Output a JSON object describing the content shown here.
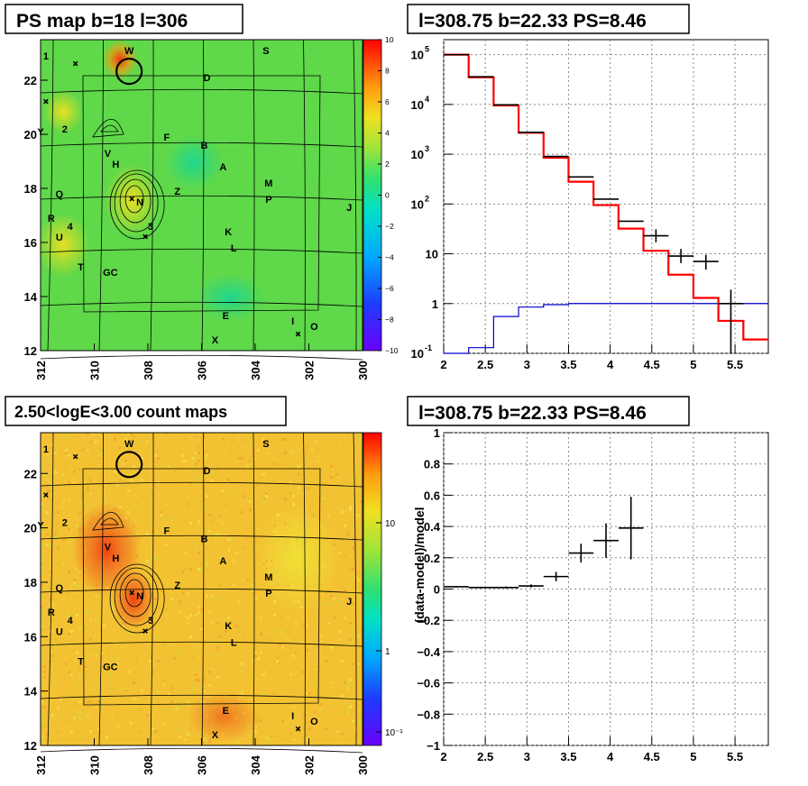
{
  "colors": {
    "map_bg_ps": "#5fd84a",
    "map_bg_counts": "#f2c232",
    "model_line": "#ff0000",
    "bg_line": "#0000cc",
    "data": "#000000"
  },
  "panels": {
    "ps_map": {
      "title": "PS map b=18 l=306",
      "x_ticks": [
        "312",
        "310",
        "308",
        "306",
        "304",
        "302",
        "300"
      ],
      "y_ticks": [
        "22",
        "20",
        "18",
        "16",
        "14",
        "12"
      ],
      "colorbar_ticks": [
        "10",
        "8",
        "6",
        "4",
        "2",
        "0",
        "−2",
        "−4",
        "−6",
        "−8",
        "−10"
      ]
    },
    "count_map": {
      "title": "2.50<logE<3.00 count maps",
      "x_ticks": [
        "312",
        "310",
        "308",
        "306",
        "304",
        "302",
        "300"
      ],
      "y_ticks": [
        "22",
        "20",
        "18",
        "16",
        "14",
        "12"
      ],
      "colorbar_ticks": [
        "10",
        "1",
        "10⁻¹"
      ]
    },
    "spectrum": {
      "title": "l=308.75 b=22.33 PS=8.46",
      "x_ticks": [
        "2",
        "2.5",
        "3",
        "3.5",
        "4",
        "4.5",
        "5",
        "5.5"
      ],
      "y_tick_mantissa": "10",
      "y_tick_exponents": [
        "5",
        "4",
        "3",
        "2",
        "",
        "",
        "-1"
      ],
      "y_tick_plain": [
        "",
        "",
        "",
        "",
        "10",
        "1",
        ""
      ]
    },
    "residual": {
      "title": "l=308.75 b=22.33 PS=8.46",
      "ylabel": "(data-model)/model",
      "x_ticks": [
        "2",
        "2.5",
        "3",
        "3.5",
        "4",
        "4.5",
        "5",
        "5.5"
      ],
      "y_ticks": [
        "1",
        "0.8",
        "0.6",
        "0.4",
        "0.2",
        "0",
        "−0.2",
        "−0.4",
        "−0.6",
        "−0.8",
        "−1"
      ]
    }
  },
  "source_labels": [
    {
      "label": "W",
      "l": 308.7,
      "b": 23.1
    },
    {
      "label": "S",
      "l": 303.6,
      "b": 23.1
    },
    {
      "label": "1",
      "l": 311.8,
      "b": 22.9
    },
    {
      "label": "D",
      "l": 305.8,
      "b": 22.1
    },
    {
      "label": "Y",
      "l": 312.0,
      "b": 20.1
    },
    {
      "label": "2",
      "l": 311.1,
      "b": 20.2
    },
    {
      "label": "F",
      "l": 307.3,
      "b": 19.9
    },
    {
      "label": "B",
      "l": 305.9,
      "b": 19.6
    },
    {
      "label": "V",
      "l": 309.5,
      "b": 19.3
    },
    {
      "label": "H",
      "l": 309.2,
      "b": 18.9
    },
    {
      "label": "A",
      "l": 305.2,
      "b": 18.8
    },
    {
      "label": "M",
      "l": 303.5,
      "b": 18.2
    },
    {
      "label": "Q",
      "l": 311.3,
      "b": 17.8
    },
    {
      "label": "Z",
      "l": 306.9,
      "b": 17.9
    },
    {
      "label": "N",
      "l": 308.3,
      "b": 17.5
    },
    {
      "label": "P",
      "l": 303.5,
      "b": 17.6
    },
    {
      "label": "J",
      "l": 300.5,
      "b": 17.3
    },
    {
      "label": "R",
      "l": 311.6,
      "b": 16.9
    },
    {
      "label": "4",
      "l": 310.9,
      "b": 16.6
    },
    {
      "label": "3",
      "l": 307.9,
      "b": 16.6
    },
    {
      "label": "K",
      "l": 305.0,
      "b": 16.4
    },
    {
      "label": "U",
      "l": 311.3,
      "b": 16.2
    },
    {
      "label": "L",
      "l": 304.8,
      "b": 15.8
    },
    {
      "label": "T",
      "l": 310.5,
      "b": 15.1
    },
    {
      "label": "GC",
      "l": 309.4,
      "b": 14.9
    },
    {
      "label": "E",
      "l": 305.1,
      "b": 13.3
    },
    {
      "label": "I",
      "l": 302.6,
      "b": 13.1
    },
    {
      "label": "O",
      "l": 301.8,
      "b": 12.9
    },
    {
      "label": "X",
      "l": 305.5,
      "b": 12.4
    }
  ],
  "chart_data": [
    {
      "type": "heatmap",
      "title": "PS map b=18 l=306",
      "xlabel": "",
      "ylabel": "",
      "xlim": [
        312,
        300
      ],
      "ylim": [
        12,
        23.5
      ],
      "colorbar": {
        "min": -10,
        "max": 10
      },
      "dominant_value": 1,
      "hotspots": [
        {
          "l": 309.0,
          "b": 23.0,
          "value": 9
        },
        {
          "l": 308.4,
          "b": 17.6,
          "value": 5
        },
        {
          "l": 311.5,
          "b": 16.2,
          "value": 4
        },
        {
          "l": 311.4,
          "b": 21.2,
          "value": 3
        }
      ]
    },
    {
      "type": "line",
      "title": "l=308.75 b=22.33 PS=8.46",
      "xlabel": "",
      "ylabel": "",
      "xlim": [
        2,
        5.9
      ],
      "ylim": [
        0.1,
        200000
      ],
      "yscale": "log",
      "grid": true,
      "bin_edges": [
        2.0,
        2.3,
        2.6,
        2.9,
        3.2,
        3.5,
        3.8,
        4.1,
        4.4,
        4.7,
        5.0,
        5.3,
        5.6,
        5.9
      ],
      "series": [
        {
          "values": [
            100000,
            35000,
            9500,
            2700,
            850,
            280,
            95,
            32,
            11.5,
            3.8,
            1.3,
            0.45,
            0.19
          ]
        },
        {
          "values": [
            0.1,
            0.13,
            0.55,
            0.85,
            0.95,
            1.0,
            1.0,
            1.0,
            1.0,
            1.0,
            1.0,
            1.0,
            1.0
          ]
        }
      ],
      "data_points": [
        {
          "x": 2.15,
          "y": 100000
        },
        {
          "x": 2.45,
          "y": 36000
        },
        {
          "x": 2.75,
          "y": 9800
        },
        {
          "x": 3.05,
          "y": 2750
        },
        {
          "x": 3.35,
          "y": 900
        },
        {
          "x": 3.65,
          "y": 350
        },
        {
          "x": 3.95,
          "y": 125
        },
        {
          "x": 4.25,
          "y": 45
        },
        {
          "x": 4.55,
          "y": 23,
          "err": [
            17,
            31
          ]
        },
        {
          "x": 4.85,
          "y": 9,
          "err": [
            6.5,
            12.5
          ]
        },
        {
          "x": 5.15,
          "y": 7,
          "err": [
            4.8,
            9.5
          ]
        },
        {
          "x": 5.45,
          "y": 1,
          "err": [
            0.1,
            1.9
          ]
        }
      ]
    },
    {
      "type": "heatmap",
      "title": "2.50<logE<3.00 count maps",
      "xlabel": "",
      "ylabel": "",
      "xlim": [
        312,
        300
      ],
      "ylim": [
        12,
        23.5
      ],
      "colorbar": {
        "min": 0.07,
        "max": 50,
        "scale": "log"
      },
      "dominant_value": 3,
      "hotspots": [
        {
          "l": 309.6,
          "b": 19.5,
          "value": 12
        },
        {
          "l": 308.4,
          "b": 17.6,
          "value": 10
        },
        {
          "l": 305.3,
          "b": 13.2,
          "value": 6
        }
      ]
    },
    {
      "type": "scatter",
      "title": "l=308.75 b=22.33 PS=8.46",
      "xlabel": "",
      "ylabel": "(data-model)/model",
      "xlim": [
        2,
        5.9
      ],
      "ylim": [
        -1,
        1
      ],
      "grid": true,
      "points": [
        {
          "x": 2.15,
          "y": 0.015,
          "xerr": 0.15,
          "yerr": 0.005
        },
        {
          "x": 2.45,
          "y": 0.01,
          "xerr": 0.15,
          "yerr": 0.005
        },
        {
          "x": 2.75,
          "y": 0.01,
          "xerr": 0.15,
          "yerr": 0.007
        },
        {
          "x": 3.05,
          "y": 0.02,
          "xerr": 0.15,
          "yerr": 0.01
        },
        {
          "x": 3.35,
          "y": 0.08,
          "xerr": 0.15,
          "yerr": 0.03
        },
        {
          "x": 3.65,
          "y": 0.23,
          "xerr": 0.15,
          "yerr": 0.06
        },
        {
          "x": 3.95,
          "y": 0.31,
          "xerr": 0.15,
          "yerr": 0.11
        },
        {
          "x": 4.25,
          "y": 0.39,
          "xerr": 0.15,
          "yerr": 0.2
        }
      ]
    }
  ]
}
